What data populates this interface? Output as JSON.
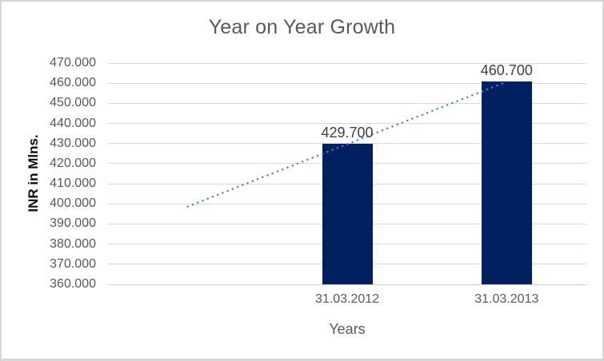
{
  "chart_data": {
    "type": "bar",
    "title": "Year on Year Growth",
    "xlabel": "Years",
    "ylabel": "INR in Mlns.",
    "categories": [
      "31.03.2012",
      "31.03.2013"
    ],
    "values": [
      429.7,
      460.7
    ],
    "data_labels": [
      "429.700",
      "460.700"
    ],
    "ylim": [
      360,
      470
    ],
    "ytick_step": 10,
    "ytick_labels": [
      "470.000",
      "460.000",
      "450.000",
      "440.000",
      "430.000",
      "420.000",
      "410.000",
      "400.000",
      "390.000",
      "380.000",
      "370.000",
      "360.000"
    ],
    "grid": true,
    "legend": "none",
    "bar_color": "#002060",
    "label_color": "#404040",
    "axis_text_color": "#595959",
    "gridline_color": "#d9d9d9",
    "axis_line_color": "#cfcfcf",
    "category_slots": 3,
    "bar_slots": [
      1,
      2
    ],
    "trendline": {
      "type": "linear",
      "style": "dotted",
      "color": "#4a82c8",
      "start_slot": 0,
      "start_value": 398.7,
      "end_slot": 2,
      "end_value": 460.7
    }
  }
}
